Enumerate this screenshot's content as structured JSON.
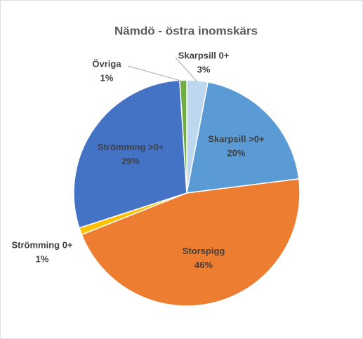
{
  "chart_data": {
    "type": "pie",
    "title": "Nämdö - östra inomskärs",
    "categories": [
      "Skarpsill 0+",
      "Skarpsill >0+",
      "Storspigg",
      "Strömming 0+",
      "Strömming >0+",
      "Övriga"
    ],
    "values": [
      3,
      20,
      46,
      1,
      29,
      1
    ],
    "value_labels": [
      "3%",
      "20%",
      "46%",
      "1%",
      "29%",
      "1%"
    ],
    "colors": [
      "#bdd7ee",
      "#5b9bd5",
      "#ed7d31",
      "#ffc000",
      "#4472c4",
      "#70ad47"
    ]
  }
}
